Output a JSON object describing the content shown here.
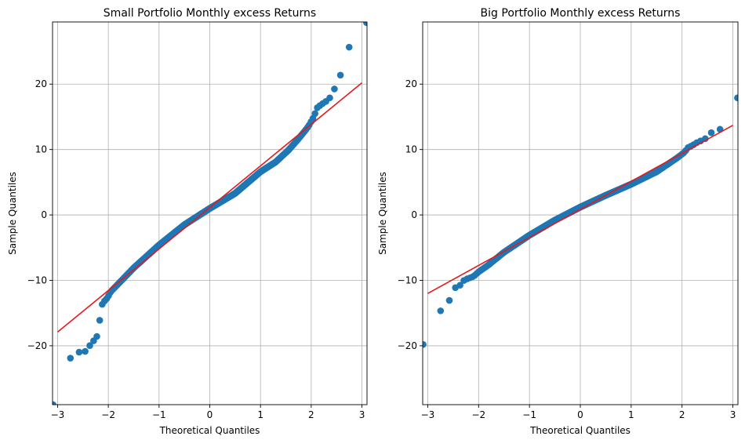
{
  "chart_data": [
    {
      "type": "scatter",
      "title": "Small Portfolio Monthly excess Returns",
      "xlabel": "Theoretical Quantiles",
      "ylabel": "Sample Quantiles",
      "xlim": [
        -3.1,
        3.1
      ],
      "ylim": [
        -29.0,
        29.5
      ],
      "xticks": [
        -3,
        -2,
        -1,
        0,
        1,
        2,
        3
      ],
      "yticks": [
        -20,
        -10,
        0,
        10,
        20
      ],
      "grid": true,
      "marker_color": "#1f77b4",
      "line_color": "#e41a1c",
      "fit_line": {
        "x": [
          -3,
          3
        ],
        "y": [
          -17.9,
          20.2
        ]
      },
      "anchors": [
        [
          -3.0,
          -29.0
        ],
        [
          -2.8,
          -22.2
        ],
        [
          -2.6,
          -21.0
        ],
        [
          -2.5,
          -20.9
        ],
        [
          -2.4,
          -20.8
        ],
        [
          -2.35,
          -19.6
        ],
        [
          -2.3,
          -19.3
        ],
        [
          -2.25,
          -19.0
        ],
        [
          -2.2,
          -18.1
        ],
        [
          -2.17,
          -16.1
        ],
        [
          -2.14,
          -13.9
        ],
        [
          -2.08,
          -13.2
        ],
        [
          -2.02,
          -12.7
        ],
        [
          -1.95,
          -11.7
        ],
        [
          -1.8,
          -10.5
        ],
        [
          -1.5,
          -8.1
        ],
        [
          -1.0,
          -4.6
        ],
        [
          -0.5,
          -1.5
        ],
        [
          0.0,
          1.0
        ],
        [
          0.5,
          3.3
        ],
        [
          1.0,
          6.6
        ],
        [
          1.3,
          8.1
        ],
        [
          1.55,
          9.9
        ],
        [
          1.7,
          11.2
        ],
        [
          1.85,
          12.6
        ],
        [
          1.95,
          13.6
        ],
        [
          2.05,
          15.0
        ],
        [
          2.12,
          16.4
        ],
        [
          2.2,
          16.9
        ],
        [
          2.28,
          17.3
        ],
        [
          2.35,
          17.7
        ],
        [
          2.42,
          18.6
        ],
        [
          2.5,
          20.0
        ],
        [
          2.55,
          20.7
        ],
        [
          2.65,
          23.3
        ],
        [
          2.8,
          26.9
        ],
        [
          3.0,
          29.4
        ]
      ]
    },
    {
      "type": "scatter",
      "title": "Big Portfolio Monthly excess Returns",
      "xlabel": "Theoretical Quantiles",
      "ylabel": "Sample Quantiles",
      "xlim": [
        -3.1,
        3.1
      ],
      "ylim": [
        -29.0,
        29.5
      ],
      "xticks": [
        -3,
        -2,
        -1,
        0,
        1,
        2,
        3
      ],
      "yticks": [
        -20,
        -10,
        0,
        10,
        20
      ],
      "grid": true,
      "marker_color": "#1f77b4",
      "line_color": "#e41a1c",
      "fit_line": {
        "x": [
          -3,
          3
        ],
        "y": [
          -12.0,
          13.7
        ]
      },
      "anchors": [
        [
          -3.0,
          -19.8
        ],
        [
          -2.8,
          -14.8
        ],
        [
          -2.65,
          -14.4
        ],
        [
          -2.55,
          -12.6
        ],
        [
          -2.45,
          -11.0
        ],
        [
          -2.35,
          -10.7
        ],
        [
          -2.28,
          -9.9
        ],
        [
          -2.2,
          -9.7
        ],
        [
          -2.1,
          -9.4
        ],
        [
          -2.0,
          -8.7
        ],
        [
          -1.8,
          -7.6
        ],
        [
          -1.5,
          -5.7
        ],
        [
          -1.0,
          -3.1
        ],
        [
          -0.5,
          -0.8
        ],
        [
          0.0,
          1.2
        ],
        [
          0.5,
          3.0
        ],
        [
          1.0,
          4.7
        ],
        [
          1.5,
          6.6
        ],
        [
          1.9,
          8.7
        ],
        [
          2.0,
          9.3
        ],
        [
          2.05,
          9.6
        ],
        [
          2.12,
          10.3
        ],
        [
          2.2,
          10.6
        ],
        [
          2.3,
          11.1
        ],
        [
          2.45,
          11.6
        ],
        [
          2.55,
          12.5
        ],
        [
          2.65,
          12.8
        ],
        [
          2.75,
          13.1
        ],
        [
          2.9,
          13.4
        ],
        [
          3.0,
          17.9
        ]
      ]
    }
  ]
}
